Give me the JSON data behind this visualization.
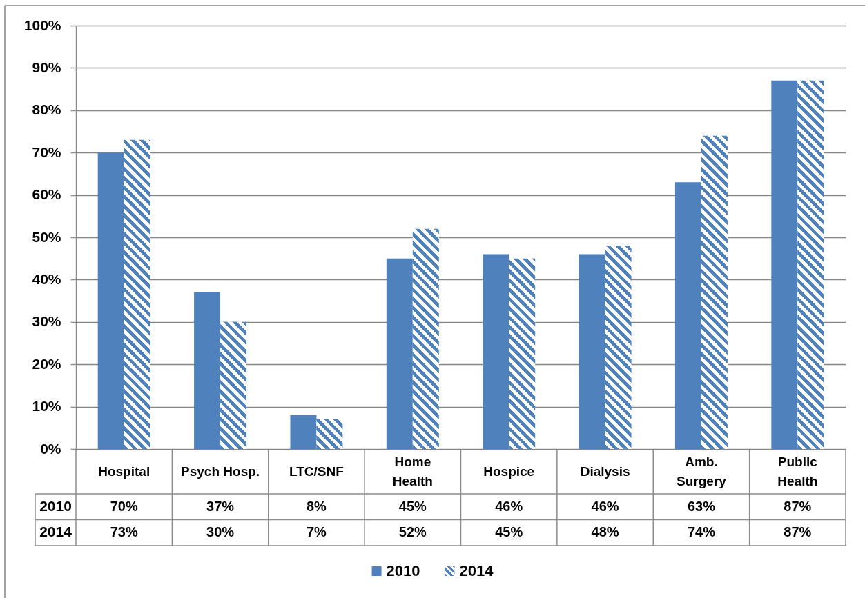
{
  "chart_data": {
    "type": "bar",
    "categories": [
      "Hospital",
      "Psych Hosp.",
      "LTC/SNF",
      "Home Health",
      "Hospice",
      "Dialysis",
      "Amb. Surgery",
      "Public Health"
    ],
    "series": [
      {
        "name": "2010",
        "color": "#4f81bd",
        "values": [
          70,
          37,
          8,
          45,
          46,
          46,
          63,
          87
        ],
        "value_labels": [
          "70%",
          "37%",
          "8%",
          "45%",
          "46%",
          "46%",
          "63%",
          "87%"
        ]
      },
      {
        "name": "2014",
        "color": "#4f81bd",
        "values": [
          73,
          30,
          7,
          52,
          45,
          48,
          74,
          87
        ],
        "value_labels": [
          "73%",
          "30%",
          "7%",
          "52%",
          "45%",
          "48%",
          "74%",
          "87%"
        ]
      }
    ],
    "ylim": [
      0,
      100
    ],
    "yticks": [
      {
        "value": 0,
        "label": "0%"
      },
      {
        "value": 10,
        "label": "10%"
      },
      {
        "value": 20,
        "label": "20%"
      },
      {
        "value": 30,
        "label": "30%"
      },
      {
        "value": 40,
        "label": "40%"
      },
      {
        "value": 50,
        "label": "50%"
      },
      {
        "value": 60,
        "label": "60%"
      },
      {
        "value": 70,
        "label": "70%"
      },
      {
        "value": 80,
        "label": "80%"
      },
      {
        "value": 90,
        "label": "90%"
      },
      {
        "value": 100,
        "label": "100%"
      }
    ],
    "grid": "y",
    "legend": "bottom"
  }
}
